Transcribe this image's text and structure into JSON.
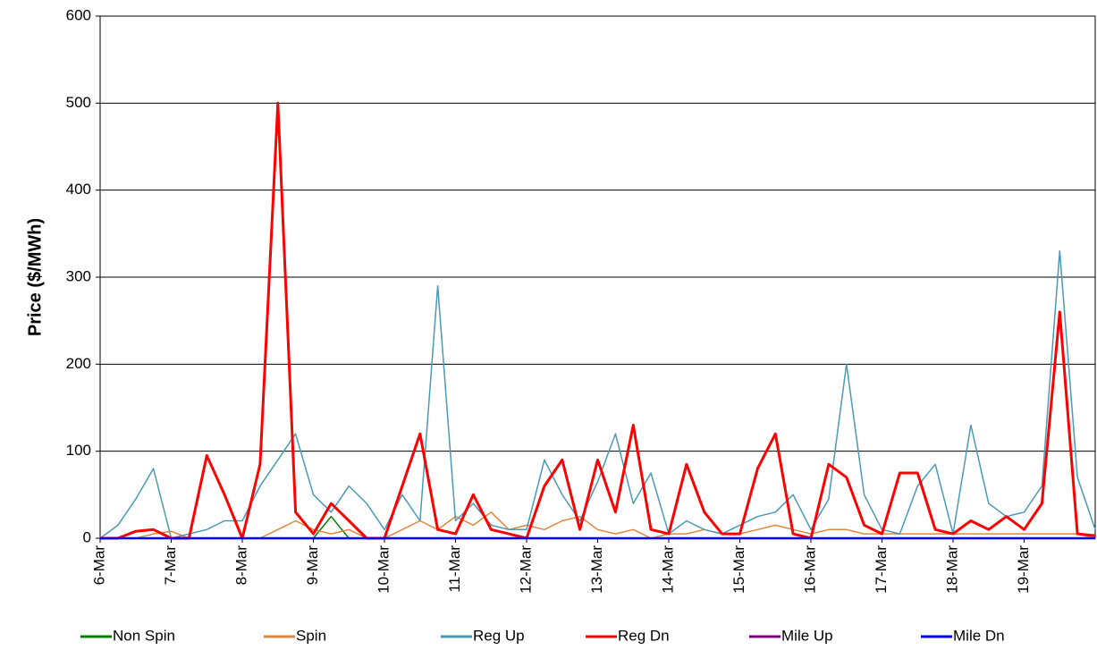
{
  "chart_data": {
    "type": "line",
    "y_label": "Price ($/MWh)",
    "xlim": [
      0,
      14
    ],
    "xticks": [
      {
        "value": 0,
        "label": "6-Mar"
      },
      {
        "value": 1,
        "label": "7-Mar"
      },
      {
        "value": 2,
        "label": "8-Mar"
      },
      {
        "value": 3,
        "label": "9-Mar"
      },
      {
        "value": 4,
        "label": "10-Mar"
      },
      {
        "value": 5,
        "label": "11-Mar"
      },
      {
        "value": 6,
        "label": "12-Mar"
      },
      {
        "value": 7,
        "label": "13-Mar"
      },
      {
        "value": 8,
        "label": "14-Mar"
      },
      {
        "value": 9,
        "label": "15-Mar"
      },
      {
        "value": 10,
        "label": "16-Mar"
      },
      {
        "value": 11,
        "label": "17-Mar"
      },
      {
        "value": 12,
        "label": "18-Mar"
      },
      {
        "value": 13,
        "label": "19-Mar"
      }
    ],
    "ylim": [
      0,
      600
    ],
    "yticks": [
      0,
      100,
      200,
      300,
      400,
      500,
      600
    ],
    "grid": true,
    "legend": "bottom",
    "x": [
      0,
      0.25,
      0.5,
      0.75,
      1,
      1.25,
      1.5,
      1.75,
      2,
      2.25,
      2.5,
      2.75,
      3,
      3.25,
      3.5,
      3.75,
      4,
      4.25,
      4.5,
      4.75,
      5,
      5.25,
      5.5,
      5.75,
      6,
      6.25,
      6.5,
      6.75,
      7,
      7.25,
      7.5,
      7.75,
      8,
      8.25,
      8.5,
      8.75,
      9,
      9.25,
      9.5,
      9.75,
      10,
      10.25,
      10.5,
      10.75,
      11,
      11.25,
      11.5,
      11.75,
      12,
      12.25,
      12.5,
      12.75,
      13,
      13.25,
      13.5,
      13.75,
      14
    ],
    "series": [
      {
        "name": "Non Spin",
        "color": "#008000",
        "width": 1.5,
        "values": [
          0,
          0,
          0,
          0,
          0,
          0,
          0,
          0,
          0,
          0,
          0,
          0,
          0,
          25,
          0,
          0,
          0,
          0,
          0,
          0,
          0,
          0,
          0,
          0,
          0,
          0,
          0,
          0,
          0,
          0,
          0,
          0,
          0,
          0,
          0,
          0,
          0,
          0,
          0,
          0,
          0,
          0,
          0,
          0,
          0,
          0,
          0,
          0,
          0,
          0,
          0,
          0,
          0,
          0,
          0,
          0,
          0
        ]
      },
      {
        "name": "Spin",
        "color": "#e0873a",
        "width": 1.5,
        "values": [
          0,
          0,
          0,
          5,
          8,
          0,
          0,
          0,
          0,
          0,
          10,
          20,
          10,
          5,
          10,
          0,
          0,
          10,
          20,
          10,
          25,
          15,
          30,
          10,
          15,
          10,
          20,
          25,
          10,
          5,
          10,
          0,
          5,
          5,
          10,
          5,
          5,
          10,
          15,
          10,
          5,
          10,
          10,
          5,
          5,
          5,
          5,
          5,
          5,
          5,
          5,
          5,
          5,
          5,
          5,
          5,
          0
        ]
      },
      {
        "name": "Reg Up",
        "color": "#4a9ab5",
        "width": 1.5,
        "values": [
          0,
          15,
          45,
          80,
          0,
          5,
          10,
          20,
          20,
          60,
          90,
          120,
          50,
          30,
          60,
          40,
          10,
          50,
          20,
          290,
          20,
          40,
          15,
          10,
          10,
          90,
          50,
          20,
          65,
          120,
          40,
          75,
          5,
          20,
          10,
          5,
          15,
          25,
          30,
          50,
          10,
          45,
          200,
          50,
          10,
          5,
          60,
          85,
          5,
          130,
          40,
          25,
          30,
          60,
          330,
          70,
          10
        ]
      },
      {
        "name": "Reg Dn",
        "color": "#ff0000",
        "width": 3,
        "values": [
          0,
          0,
          8,
          10,
          0,
          0,
          95,
          50,
          0,
          85,
          500,
          30,
          5,
          40,
          20,
          0,
          0,
          60,
          120,
          10,
          5,
          50,
          10,
          5,
          0,
          60,
          90,
          10,
          90,
          30,
          130,
          10,
          5,
          85,
          30,
          5,
          5,
          80,
          120,
          5,
          0,
          85,
          70,
          15,
          5,
          75,
          75,
          10,
          5,
          20,
          10,
          25,
          10,
          40,
          260,
          5,
          3
        ]
      },
      {
        "name": "Mile Up",
        "color": "#800080",
        "width": 1.5,
        "values": [
          0,
          0,
          0,
          0,
          0,
          0,
          0,
          0,
          0,
          0,
          0,
          0,
          0,
          0,
          0,
          0,
          0,
          0,
          0,
          0,
          0,
          0,
          0,
          0,
          0,
          0,
          0,
          0,
          0,
          0,
          0,
          0,
          0,
          0,
          0,
          0,
          0,
          0,
          0,
          0,
          0,
          0,
          0,
          0,
          0,
          0,
          0,
          0,
          0,
          0,
          0,
          0,
          0,
          0,
          0,
          0,
          0
        ]
      },
      {
        "name": "Mile Dn",
        "color": "#0000ff",
        "width": 2.5,
        "values": [
          0,
          0,
          0,
          0,
          0,
          0,
          0,
          0,
          0,
          0,
          0,
          0,
          0,
          0,
          0,
          0,
          0,
          0,
          0,
          0,
          0,
          0,
          0,
          0,
          0,
          0,
          0,
          0,
          0,
          0,
          0,
          0,
          0,
          0,
          0,
          0,
          0,
          0,
          0,
          0,
          0,
          0,
          0,
          0,
          0,
          0,
          0,
          0,
          0,
          0,
          0,
          0,
          0,
          0,
          0,
          0,
          0
        ]
      }
    ]
  }
}
